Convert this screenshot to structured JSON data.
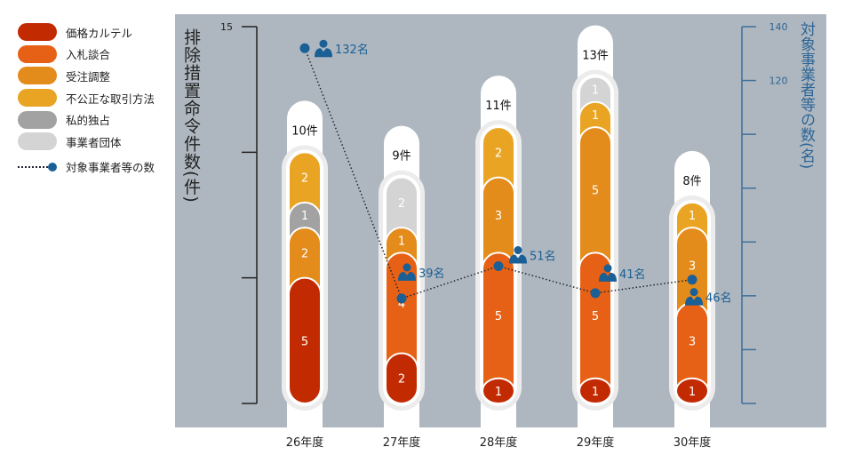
{
  "chart_data": {
    "type": "bar",
    "subtype": "stacked-bar-with-line",
    "categories": [
      "26年度",
      "27年度",
      "28年度",
      "29年度",
      "30年度"
    ],
    "series": [
      {
        "name": "価格カルテル",
        "color": "#c22b02",
        "values": [
          5,
          2,
          1,
          1,
          1
        ]
      },
      {
        "name": "入札談合",
        "color": "#e66115",
        "values": [
          0,
          4,
          5,
          5,
          3
        ]
      },
      {
        "name": "受注調整",
        "color": "#e38b1b",
        "values": [
          2,
          1,
          3,
          5,
          3
        ]
      },
      {
        "name": "不公正な取引方法",
        "color": "#e9a423",
        "values": [
          2,
          0,
          2,
          1,
          1
        ]
      },
      {
        "name": "私的独占",
        "color": "#a2a2a2",
        "values": [
          1,
          0,
          0,
          0,
          0
        ]
      },
      {
        "name": "事業者団体",
        "color": "#d4d4d4",
        "values": [
          0,
          2,
          0,
          1,
          0
        ]
      }
    ],
    "stack_order_bottom_to_top": [
      [
        "価格カルテル",
        "受注調整",
        "私的独占",
        "不公正な取引方法"
      ],
      [
        "価格カルテル",
        "入札談合",
        "受注調整",
        "事業者団体"
      ],
      [
        "価格カルテル",
        "入札談合",
        "受注調整",
        "不公正な取引方法"
      ],
      [
        "価格カルテル",
        "入札談合",
        "受注調整",
        "不公正な取引方法",
        "事業者団体"
      ],
      [
        "価格カルテル",
        "入札談合",
        "受注調整",
        "不公正な取引方法"
      ]
    ],
    "totals": [
      10,
      9,
      11,
      13,
      8
    ],
    "total_labels": [
      "10件",
      "9件",
      "11件",
      "13件",
      "8件"
    ],
    "line_series": {
      "name": "対象事業者等の数",
      "color": "#1a5f95",
      "values": [
        132,
        39,
        51,
        41,
        46
      ],
      "labels": [
        "132名",
        "39名",
        "51名",
        "41名",
        "46名"
      ]
    },
    "y_left": {
      "label": "排除措置命令件数(件)",
      "range": [
        0,
        15
      ],
      "ticks": [
        0,
        5,
        10,
        15
      ],
      "tick_labels": [
        "15"
      ]
    },
    "y_right": {
      "label": "対象事業者等の数(名)",
      "range": [
        0,
        140
      ],
      "ticks": [
        0,
        20,
        40,
        60,
        80,
        100,
        120,
        140
      ],
      "tick_labels": [
        "140",
        "120"
      ]
    },
    "legend_position": "left",
    "background": "#aeb7bf"
  }
}
